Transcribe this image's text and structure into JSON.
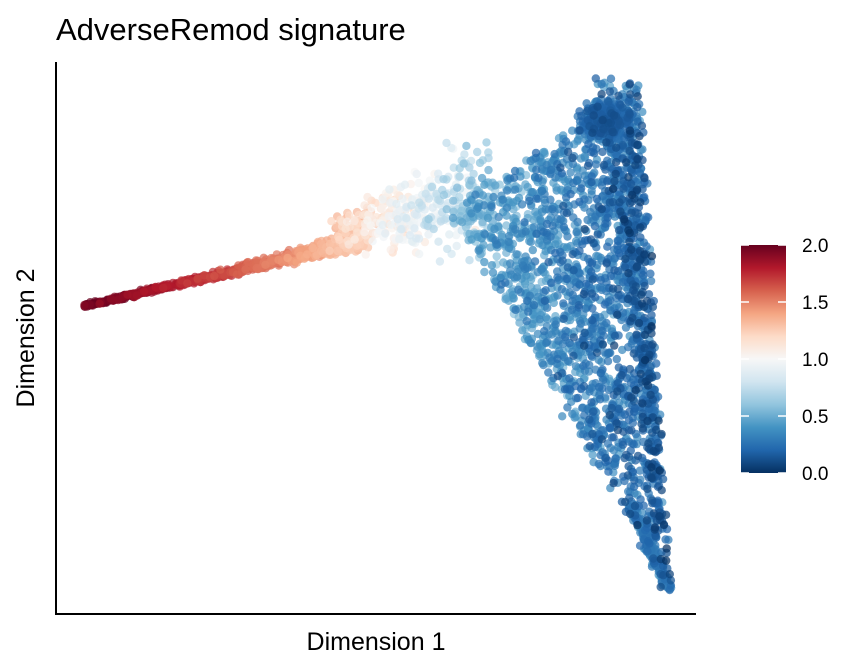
{
  "chart_data": {
    "type": "scatter",
    "title": "AdverseRemod signature",
    "xlabel": "Dimension 1",
    "ylabel": "Dimension 2",
    "x_ticks_shown": false,
    "y_ticks_shown": false,
    "grid": false,
    "xlim": [
      0,
      100
    ],
    "ylim": [
      0,
      100
    ],
    "colorbar": {
      "min": 0.0,
      "max": 2.0,
      "ticks": [
        "2.0",
        "1.5",
        "1.0",
        "0.5",
        "0.0"
      ],
      "colors": [
        "#053061",
        "#2166ac",
        "#4393c3",
        "#92c5de",
        "#d1e5f0",
        "#f7f7f7",
        "#fddbc7",
        "#f4a582",
        "#d6604d",
        "#b2182b",
        "#67001f"
      ],
      "placement": "right"
    },
    "structure": {
      "description_points": "trajectory skeleton in data units; value = signature score",
      "left_arm_tip": {
        "x": 4,
        "y": 56,
        "value": 2.0
      },
      "branch_point": {
        "x": 48,
        "y": 68,
        "value": 1.0
      },
      "top_right_tip": {
        "x": 91,
        "y": 96,
        "value": 0.2
      },
      "bottom_right_tip": {
        "x": 96,
        "y": 4,
        "value": 0.3
      }
    },
    "series": [
      {
        "values": [
          {
            "x": 4,
            "y": 56,
            "v": 2.0
          },
          {
            "x": 10,
            "y": 58.5,
            "v": 1.95
          },
          {
            "x": 16,
            "y": 61,
            "v": 1.9
          },
          {
            "x": 22,
            "y": 63.5,
            "v": 1.8
          },
          {
            "x": 28,
            "y": 66,
            "v": 1.65
          },
          {
            "x": 34,
            "y": 68,
            "v": 1.5
          },
          {
            "x": 40,
            "y": 70,
            "v": 1.3
          },
          {
            "x": 46,
            "y": 72,
            "v": 1.1
          },
          {
            "x": 52,
            "y": 74,
            "v": 0.9
          },
          {
            "x": 58,
            "y": 77,
            "v": 0.7
          },
          {
            "x": 65,
            "y": 82,
            "v": 0.5
          },
          {
            "x": 72,
            "y": 86,
            "v": 0.4
          },
          {
            "x": 80,
            "y": 90,
            "v": 0.3
          },
          {
            "x": 88,
            "y": 94,
            "v": 0.25
          },
          {
            "x": 91,
            "y": 96,
            "v": 0.2
          },
          {
            "x": 86,
            "y": 70,
            "v": 0.4
          },
          {
            "x": 88,
            "y": 50,
            "v": 0.45
          },
          {
            "x": 90,
            "y": 30,
            "v": 0.4
          },
          {
            "x": 93,
            "y": 15,
            "v": 0.35
          },
          {
            "x": 96,
            "y": 4,
            "v": 0.3
          }
        ]
      }
    ]
  }
}
